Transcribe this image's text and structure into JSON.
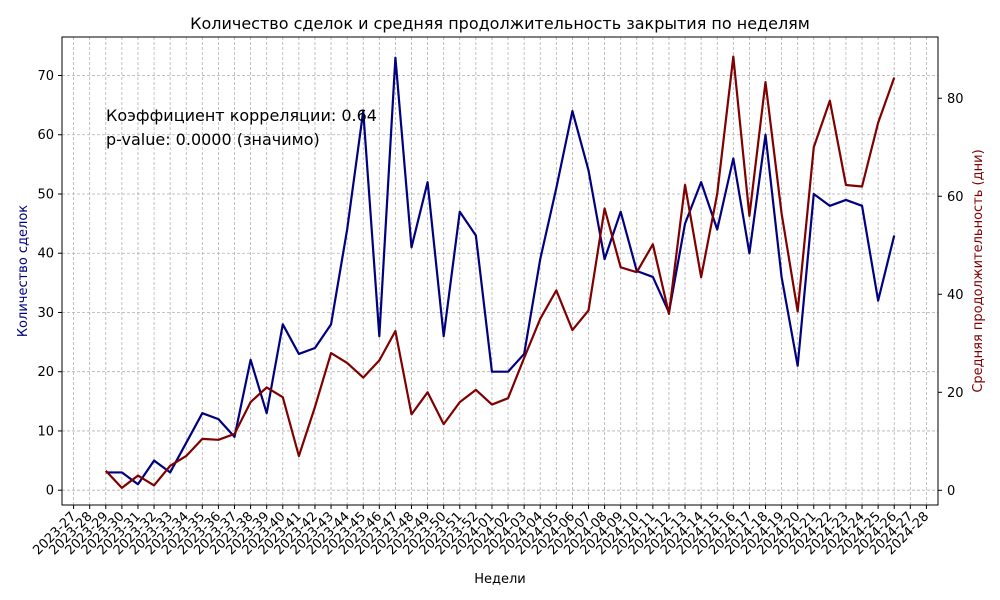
{
  "chart_data": {
    "type": "line",
    "title": "Количество сделок и средняя продолжительность закрытия по неделям",
    "xlabel": "Недели",
    "ylabel_left": "Количество сделок",
    "ylabel_right": "Средняя продолжительность (дни)",
    "colors": {
      "left": "#000080",
      "right": "#800000"
    },
    "x_ticks": [
      "2023-27",
      "2023-28",
      "2023-29",
      "2023-30",
      "2023-31",
      "2023-32",
      "2023-33",
      "2023-34",
      "2023-35",
      "2023-36",
      "2023-37",
      "2023-38",
      "2023-39",
      "2023-40",
      "2023-41",
      "2023-42",
      "2023-43",
      "2023-44",
      "2023-45",
      "2023-46",
      "2023-47",
      "2023-48",
      "2023-49",
      "2023-50",
      "2023-51",
      "2023-52",
      "2024-01",
      "2024-02",
      "2024-03",
      "2024-04",
      "2024-05",
      "2024-06",
      "2024-07",
      "2024-08",
      "2024-09",
      "2024-10",
      "2024-11",
      "2024-12",
      "2024-13",
      "2024-14",
      "2024-15",
      "2024-16",
      "2024-17",
      "2024-18",
      "2024-19",
      "2024-20",
      "2024-21",
      "2024-22",
      "2024-23",
      "2024-24",
      "2024-25",
      "2024-26",
      "2024-27",
      "2024-28"
    ],
    "y_left_ticks": [
      0,
      10,
      20,
      30,
      40,
      50,
      60,
      70
    ],
    "y_left_range": [
      -2.5,
      76.5
    ],
    "y_right_ticks": [
      0,
      20,
      40,
      60,
      80
    ],
    "y_right_range": [
      -3.0,
      92.5
    ],
    "grid": true,
    "series": [
      {
        "name": "Количество сделок",
        "axis": "left",
        "x": [
          "2023-29",
          "2023-30",
          "2023-31",
          "2023-32",
          "2023-33",
          "2023-34",
          "2023-35",
          "2023-36",
          "2023-37",
          "2023-38",
          "2023-39",
          "2023-40",
          "2023-41",
          "2023-42",
          "2023-43",
          "2023-44",
          "2023-45",
          "2023-46",
          "2023-47",
          "2023-48",
          "2023-49",
          "2023-50",
          "2023-51",
          "2023-52",
          "2024-01",
          "2024-02",
          "2024-03",
          "2024-04",
          "2024-05",
          "2024-06",
          "2024-07",
          "2024-08",
          "2024-09",
          "2024-10",
          "2024-11",
          "2024-12",
          "2024-13",
          "2024-14",
          "2024-15",
          "2024-16",
          "2024-17",
          "2024-18",
          "2024-19",
          "2024-20",
          "2024-21",
          "2024-22",
          "2024-23",
          "2024-24",
          "2024-25",
          "2024-26"
        ],
        "values": [
          3,
          3,
          1,
          5,
          3,
          8,
          13,
          12,
          9,
          22,
          13,
          28,
          23,
          24,
          28,
          44,
          64,
          26,
          73,
          41,
          52,
          26,
          47,
          43,
          20,
          20,
          23,
          39,
          51,
          64,
          54,
          39,
          47,
          37,
          36,
          30,
          45,
          52,
          44,
          56,
          40,
          60,
          36,
          21,
          50,
          48,
          49,
          48,
          32,
          43
        ]
      },
      {
        "name": "Средняя продолжительность (дни)",
        "axis": "right",
        "x": [
          "2023-29",
          "2023-30",
          "2023-31",
          "2023-32",
          "2023-33",
          "2023-34",
          "2023-35",
          "2023-36",
          "2023-37",
          "2023-38",
          "2023-39",
          "2023-40",
          "2023-41",
          "2023-42",
          "2023-43",
          "2023-44",
          "2023-45",
          "2023-46",
          "2023-47",
          "2023-48",
          "2023-49",
          "2023-50",
          "2023-51",
          "2023-52",
          "2024-01",
          "2024-02",
          "2024-03",
          "2024-04",
          "2024-05",
          "2024-06",
          "2024-07",
          "2024-08",
          "2024-09",
          "2024-10",
          "2024-11",
          "2024-12",
          "2024-13",
          "2024-14",
          "2024-15",
          "2024-16",
          "2024-17",
          "2024-18",
          "2024-19",
          "2024-20",
          "2024-21",
          "2024-22",
          "2024-23",
          "2024-24",
          "2024-25",
          "2024-26"
        ],
        "values": [
          4,
          0.5,
          3,
          1,
          5,
          7,
          10.5,
          10.3,
          11.5,
          18,
          21,
          19,
          7,
          17,
          28,
          26,
          23,
          26.5,
          32.5,
          15.5,
          20,
          13.5,
          18,
          20.5,
          17.5,
          18.8,
          27,
          35,
          40.8,
          32.7,
          36.7,
          57.5,
          45.5,
          44.5,
          50.2,
          36,
          62.3,
          43.5,
          60.5,
          88.5,
          56,
          83.3,
          56.5,
          36.5,
          70,
          79.5,
          62.3,
          62,
          75,
          84.2
        ]
      }
    ],
    "annotations": [
      "Коэффициент корреляции: 0.64",
      "p-value: 0.0000 (значимо)"
    ]
  }
}
